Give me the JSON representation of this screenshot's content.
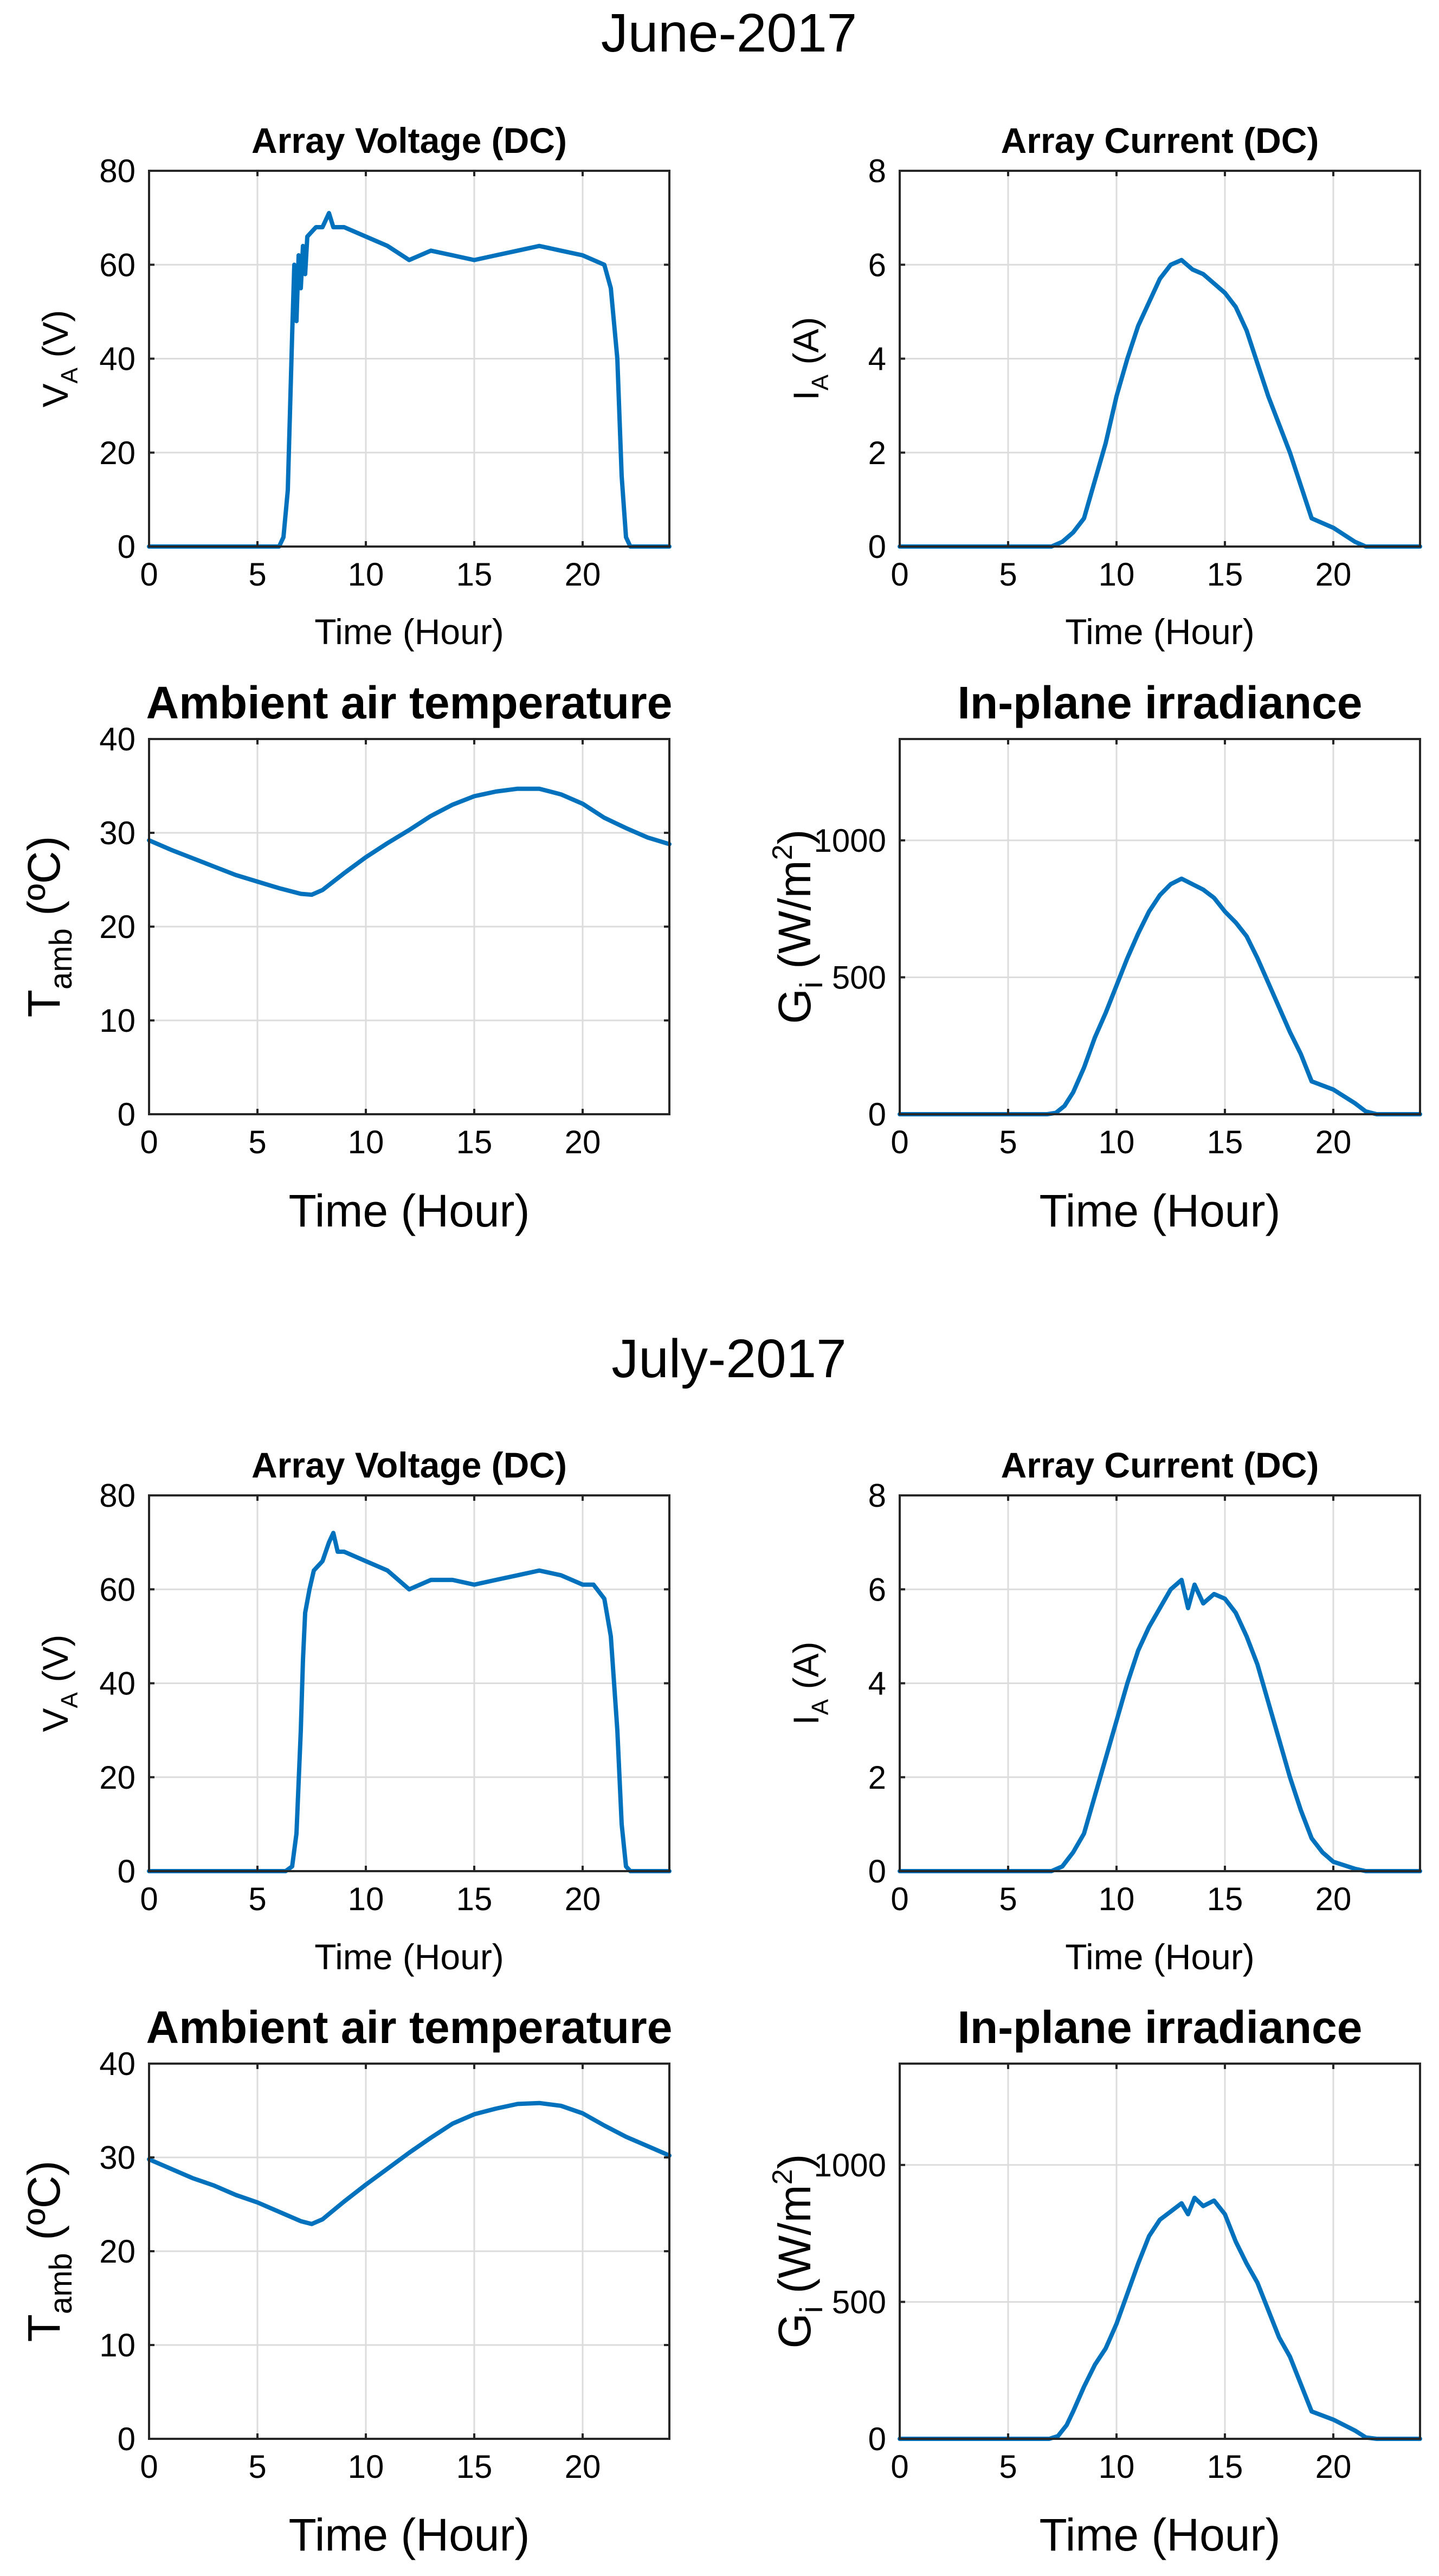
{
  "colors": {
    "series": "#0072BD",
    "axis": "#262626",
    "grid": "#dcdcdc"
  },
  "sections": [
    {
      "title": "June-2017"
    },
    {
      "title": "July-2017"
    }
  ],
  "chart_data": [
    {
      "id": "june-voltage",
      "type": "line",
      "title": "Array Voltage (DC)",
      "xlabel": "Time (Hour)",
      "ylabel": {
        "main": "V",
        "sub": "A",
        "sup": "",
        "rest": " (V)"
      },
      "xlim": [
        0,
        24
      ],
      "ylim": [
        0,
        80
      ],
      "xticks": [
        0,
        5,
        10,
        15,
        20
      ],
      "yticks": [
        0,
        20,
        40,
        60,
        80
      ],
      "grid": true,
      "series": [
        {
          "name": "V_A",
          "x": [
            0,
            6.0,
            6.2,
            6.4,
            6.6,
            6.7,
            6.8,
            6.9,
            7.0,
            7.1,
            7.2,
            7.3,
            7.5,
            7.7,
            8.0,
            8.3,
            8.5,
            9.0,
            10.0,
            11.0,
            12.0,
            13.0,
            14.0,
            15.0,
            16.0,
            17.0,
            18.0,
            19.0,
            20.0,
            21.0,
            21.3,
            21.6,
            21.8,
            22.0,
            22.2,
            24
          ],
          "y": [
            0,
            0,
            2,
            12,
            45,
            60,
            48,
            62,
            55,
            64,
            58,
            66,
            67,
            68,
            68,
            71,
            68,
            68,
            66,
            64,
            61,
            63,
            62,
            61,
            62,
            63,
            64,
            63,
            62,
            60,
            55,
            40,
            15,
            2,
            0,
            0
          ]
        }
      ]
    },
    {
      "id": "june-current",
      "type": "line",
      "title": "Array Current (DC)",
      "xlabel": "Time (Hour)",
      "ylabel": {
        "main": "I",
        "sub": "A",
        "sup": "",
        "rest": " (A)"
      },
      "xlim": [
        0,
        24
      ],
      "ylim": [
        0,
        8
      ],
      "xticks": [
        0,
        5,
        10,
        15,
        20
      ],
      "yticks": [
        0,
        2,
        4,
        6,
        8
      ],
      "grid": true,
      "series": [
        {
          "name": "I_A",
          "x": [
            0,
            7.0,
            7.5,
            8.0,
            8.5,
            9.0,
            9.5,
            10.0,
            10.5,
            11.0,
            11.5,
            12.0,
            12.5,
            13.0,
            13.5,
            14.0,
            14.5,
            15.0,
            15.5,
            16.0,
            16.5,
            17.0,
            17.5,
            18.0,
            18.5,
            19.0,
            20.0,
            21.0,
            21.5,
            24
          ],
          "y": [
            0,
            0,
            0.1,
            0.3,
            0.6,
            1.4,
            2.2,
            3.2,
            4.0,
            4.7,
            5.2,
            5.7,
            6.0,
            6.1,
            5.9,
            5.8,
            5.6,
            5.4,
            5.1,
            4.6,
            3.9,
            3.2,
            2.6,
            2.0,
            1.3,
            0.6,
            0.4,
            0.1,
            0,
            0
          ]
        }
      ]
    },
    {
      "id": "june-temperature",
      "type": "line",
      "title": "Ambient air temperature",
      "xlabel": "Time (Hour)",
      "ylabel": {
        "main": "T",
        "sub": "amb",
        "sup": "",
        "rest": " (ºC)"
      },
      "xlim": [
        0,
        24
      ],
      "ylim": [
        0,
        40
      ],
      "xticks": [
        0,
        5,
        10,
        15,
        20
      ],
      "yticks": [
        0,
        10,
        20,
        30,
        40
      ],
      "grid": true,
      "series": [
        {
          "name": "T_amb",
          "x": [
            0,
            1,
            2,
            3,
            4,
            5,
            6,
            7,
            7.5,
            8,
            9,
            10,
            11,
            12,
            13,
            14,
            15,
            16,
            17,
            18,
            19,
            20,
            21,
            22,
            23,
            24
          ],
          "y": [
            29.2,
            28.2,
            27.3,
            26.4,
            25.5,
            24.8,
            24.1,
            23.5,
            23.4,
            23.9,
            25.7,
            27.4,
            28.9,
            30.3,
            31.8,
            33.0,
            33.9,
            34.4,
            34.7,
            34.7,
            34.1,
            33.1,
            31.6,
            30.5,
            29.5,
            28.8
          ]
        }
      ]
    },
    {
      "id": "june-irradiance",
      "type": "line",
      "title": "In-plane irradiance",
      "xlabel": "Time (Hour)",
      "ylabel": {
        "main": "G",
        "sub": "i",
        "sup": "2",
        "rest_before_sup": " (W/m",
        "rest_after_sup": ")"
      },
      "xlim": [
        0,
        24
      ],
      "ylim": [
        0,
        1370
      ],
      "xticks": [
        0,
        5,
        10,
        15,
        20
      ],
      "yticks": [
        0,
        500,
        1000
      ],
      "grid": true,
      "series": [
        {
          "name": "G_i",
          "x": [
            0,
            6.8,
            7.2,
            7.6,
            8.0,
            8.5,
            9.0,
            9.5,
            10.0,
            10.5,
            11.0,
            11.5,
            12.0,
            12.5,
            13.0,
            13.5,
            14.0,
            14.5,
            15.0,
            15.5,
            16.0,
            16.5,
            17.0,
            17.5,
            18.0,
            18.5,
            19.0,
            20.0,
            21.0,
            21.5,
            22.0,
            24
          ],
          "y": [
            0,
            0,
            5,
            30,
            80,
            170,
            280,
            370,
            470,
            570,
            660,
            740,
            800,
            840,
            860,
            840,
            820,
            790,
            740,
            700,
            650,
            570,
            480,
            390,
            300,
            220,
            120,
            90,
            40,
            10,
            0,
            0
          ]
        }
      ]
    },
    {
      "id": "july-voltage",
      "type": "line",
      "title": "Array Voltage (DC)",
      "xlabel": "Time (Hour)",
      "ylabel": {
        "main": "V",
        "sub": "A",
        "sup": "",
        "rest": " (V)"
      },
      "xlim": [
        0,
        24
      ],
      "ylim": [
        0,
        80
      ],
      "xticks": [
        0,
        5,
        10,
        15,
        20
      ],
      "yticks": [
        0,
        20,
        40,
        60,
        80
      ],
      "grid": true,
      "series": [
        {
          "name": "V_A",
          "x": [
            0,
            6.3,
            6.6,
            6.8,
            7.0,
            7.1,
            7.2,
            7.4,
            7.6,
            7.8,
            8.0,
            8.3,
            8.5,
            8.7,
            9.0,
            10.0,
            11.0,
            12.0,
            13.0,
            14.0,
            15.0,
            16.0,
            17.0,
            18.0,
            19.0,
            20.0,
            20.5,
            21.0,
            21.3,
            21.6,
            21.8,
            22.0,
            22.2,
            24
          ],
          "y": [
            0,
            0,
            1,
            8,
            30,
            45,
            55,
            60,
            64,
            65,
            66,
            70,
            72,
            68,
            68,
            66,
            64,
            60,
            62,
            62,
            61,
            62,
            63,
            64,
            63,
            61,
            61,
            58,
            50,
            30,
            10,
            1,
            0,
            0
          ]
        }
      ]
    },
    {
      "id": "july-current",
      "type": "line",
      "title": "Array Current (DC)",
      "xlabel": "Time (Hour)",
      "ylabel": {
        "main": "I",
        "sub": "A",
        "sup": "",
        "rest": " (A)"
      },
      "xlim": [
        0,
        24
      ],
      "ylim": [
        0,
        8
      ],
      "xticks": [
        0,
        5,
        10,
        15,
        20
      ],
      "yticks": [
        0,
        2,
        4,
        6,
        8
      ],
      "grid": true,
      "series": [
        {
          "name": "I_A",
          "x": [
            0,
            7.0,
            7.5,
            8.0,
            8.5,
            9.0,
            9.5,
            10.0,
            10.5,
            11.0,
            11.5,
            12.0,
            12.5,
            13.0,
            13.3,
            13.6,
            14.0,
            14.5,
            15.0,
            15.5,
            16.0,
            16.5,
            17.0,
            17.5,
            18.0,
            18.5,
            19.0,
            19.5,
            20.0,
            21.0,
            21.5,
            24
          ],
          "y": [
            0,
            0,
            0.1,
            0.4,
            0.8,
            1.6,
            2.4,
            3.2,
            4.0,
            4.7,
            5.2,
            5.6,
            6.0,
            6.2,
            5.6,
            6.1,
            5.7,
            5.9,
            5.8,
            5.5,
            5.0,
            4.4,
            3.6,
            2.8,
            2.0,
            1.3,
            0.7,
            0.4,
            0.2,
            0.05,
            0,
            0
          ]
        }
      ]
    },
    {
      "id": "july-temperature",
      "type": "line",
      "title": "Ambient air temperature",
      "xlabel": "Time (Hour)",
      "ylabel": {
        "main": "T",
        "sub": "amb",
        "sup": "",
        "rest": " (ºC)"
      },
      "xlim": [
        0,
        24
      ],
      "ylim": [
        0,
        40
      ],
      "xticks": [
        0,
        5,
        10,
        15,
        20
      ],
      "yticks": [
        0,
        10,
        20,
        30,
        40
      ],
      "grid": true,
      "series": [
        {
          "name": "T_amb",
          "x": [
            0,
            1,
            2,
            3,
            4,
            5,
            6,
            7,
            7.5,
            8,
            9,
            10,
            11,
            12,
            13,
            14,
            15,
            16,
            17,
            18,
            19,
            20,
            21,
            22,
            23,
            24
          ],
          "y": [
            29.8,
            28.8,
            27.8,
            27.0,
            26.0,
            25.2,
            24.2,
            23.2,
            22.9,
            23.4,
            25.3,
            27.1,
            28.8,
            30.5,
            32.1,
            33.6,
            34.6,
            35.2,
            35.7,
            35.8,
            35.5,
            34.7,
            33.4,
            32.2,
            31.2,
            30.2
          ]
        }
      ]
    },
    {
      "id": "july-irradiance",
      "type": "line",
      "title": "In-plane irradiance",
      "xlabel": "Time (Hour)",
      "ylabel": {
        "main": "G",
        "sub": "i",
        "sup": "2",
        "rest_before_sup": " (W/m",
        "rest_after_sup": ")"
      },
      "xlim": [
        0,
        24
      ],
      "ylim": [
        0,
        1370
      ],
      "xticks": [
        0,
        5,
        10,
        15,
        20
      ],
      "yticks": [
        0,
        500,
        1000
      ],
      "grid": true,
      "series": [
        {
          "name": "G_i",
          "x": [
            0,
            6.9,
            7.3,
            7.7,
            8.0,
            8.5,
            9.0,
            9.5,
            10.0,
            10.5,
            11.0,
            11.5,
            12.0,
            12.5,
            13.0,
            13.3,
            13.6,
            14.0,
            14.5,
            15.0,
            15.5,
            16.0,
            16.5,
            17.0,
            17.5,
            18.0,
            18.5,
            19.0,
            20.0,
            21.0,
            21.5,
            22.0,
            24
          ],
          "y": [
            0,
            0,
            10,
            50,
            100,
            190,
            270,
            330,
            420,
            530,
            640,
            740,
            800,
            830,
            860,
            820,
            880,
            850,
            870,
            820,
            720,
            640,
            570,
            470,
            370,
            300,
            200,
            100,
            70,
            30,
            5,
            0,
            0
          ]
        }
      ]
    }
  ]
}
